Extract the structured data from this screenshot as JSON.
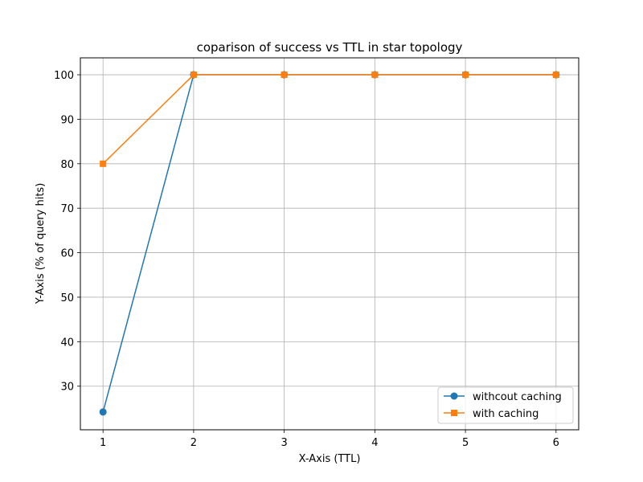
{
  "chart_data": {
    "type": "line",
    "title": "coparison of success vs TTL in star topology",
    "xlabel": "X-Axis (TTL)",
    "ylabel": "Y-Axis (% of query hits)",
    "x": [
      1,
      2,
      3,
      4,
      5,
      6
    ],
    "xticks": [
      "1",
      "2",
      "3",
      "4",
      "5",
      "6"
    ],
    "yticks": [
      "30",
      "40",
      "50",
      "60",
      "70",
      "80",
      "90",
      "100"
    ],
    "xlim": [
      0.75,
      6.25
    ],
    "ylim": [
      20.2,
      103.8
    ],
    "grid": true,
    "legend_position": "bottom-right",
    "series": [
      {
        "name": "withcout caching",
        "values": [
          24.2,
          100,
          100,
          100,
          100,
          100
        ],
        "color": "#1f77b4",
        "marker": "circle"
      },
      {
        "name": "with caching",
        "values": [
          80,
          100,
          100,
          100,
          100,
          100
        ],
        "color": "#ff7f0e",
        "marker": "square"
      }
    ]
  }
}
